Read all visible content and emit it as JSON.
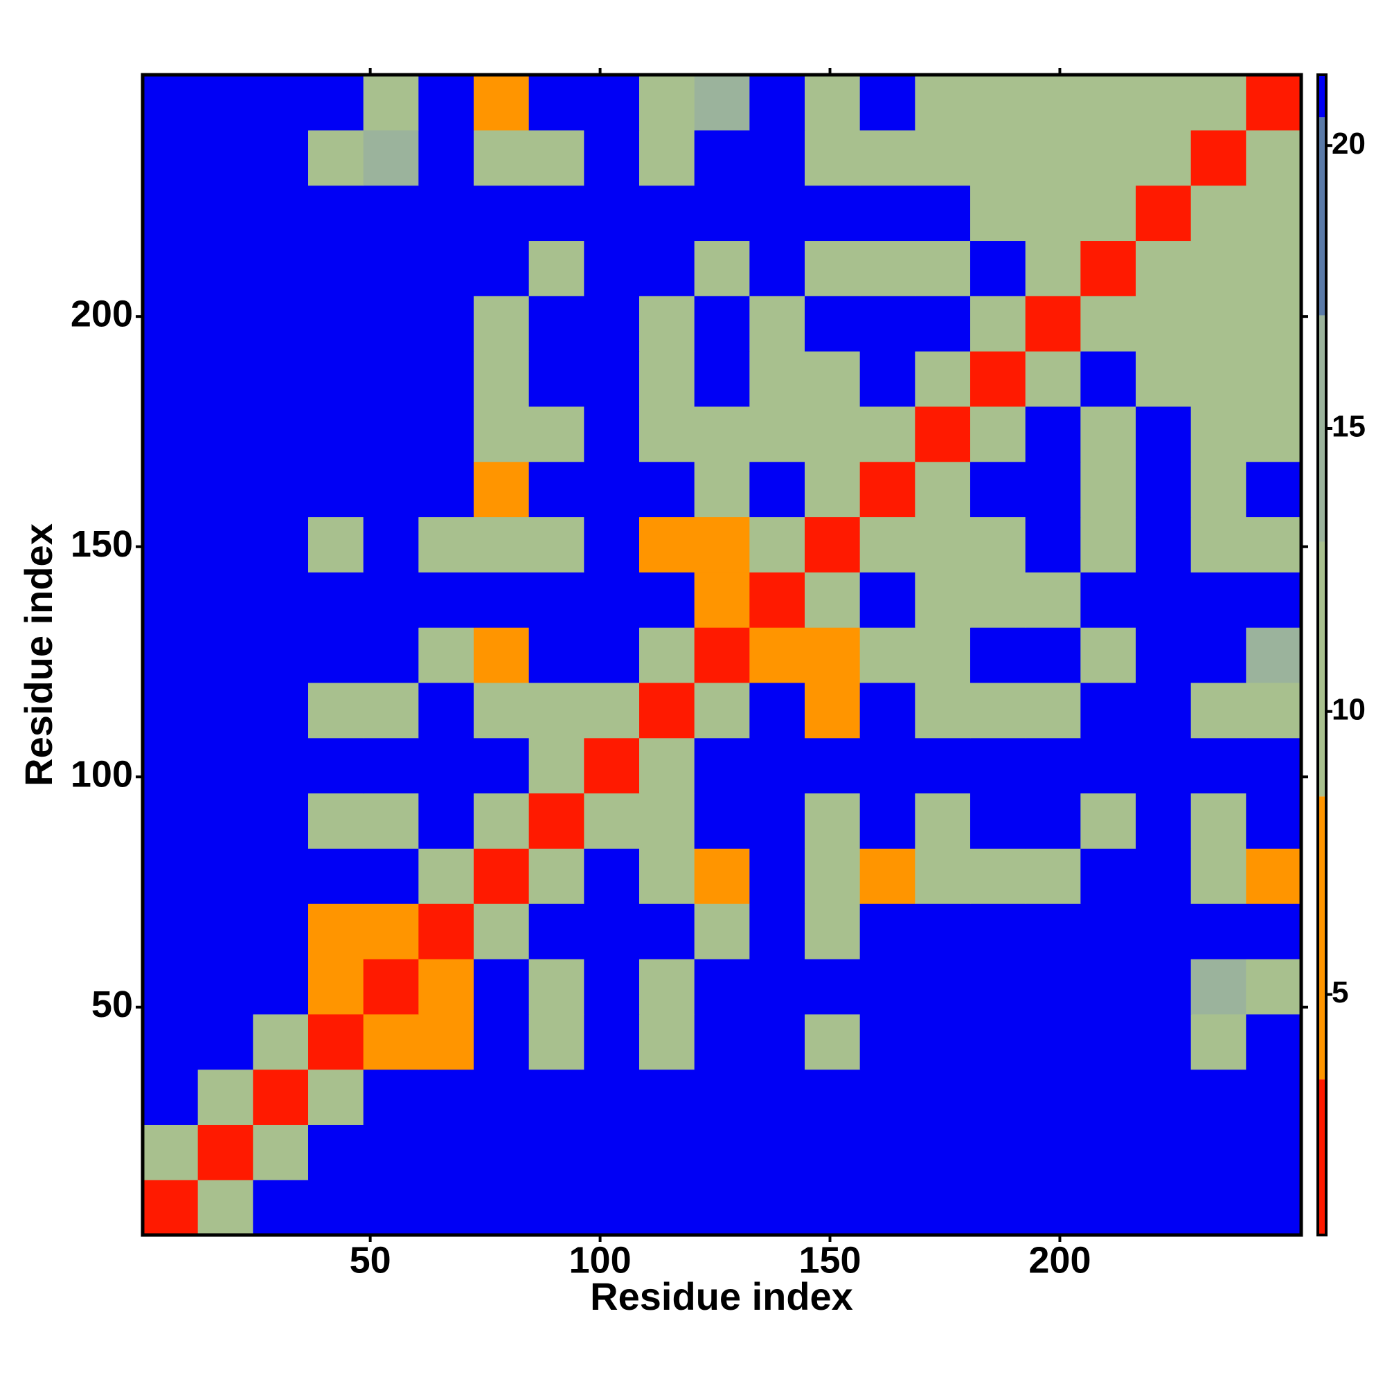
{
  "chart_data": {
    "type": "heatmap",
    "xlabel": "Residue index",
    "ylabel": "Residue index",
    "x_bins": [
      0.5,
      12.5,
      24.5,
      36.5,
      48.5,
      60.5,
      72.5,
      84.5,
      96.5,
      108.5,
      120.5,
      132.5,
      144.5,
      156.5,
      168.5,
      180.5,
      192.5,
      204.5,
      216.5,
      228.5,
      240.5,
      252.5
    ],
    "y_bins": [
      0.5,
      12.5,
      24.5,
      36.5,
      48.5,
      60.5,
      72.5,
      84.5,
      96.5,
      108.5,
      120.5,
      132.5,
      144.5,
      156.5,
      168.5,
      180.5,
      192.5,
      204.5,
      216.5,
      228.5,
      240.5,
      252.5
    ],
    "xlim": [
      0.5,
      252.5
    ],
    "ylim": [
      0.5,
      252.5
    ],
    "xticks": [
      50,
      100,
      150,
      200
    ],
    "yticks": [
      50,
      100,
      150,
      200
    ],
    "z": [
      [
        3,
        10,
        21,
        21,
        21,
        21,
        21,
        21,
        21,
        21,
        21,
        21,
        21,
        21,
        21,
        21,
        21,
        21,
        21,
        21,
        21
      ],
      [
        10,
        3,
        10,
        21,
        21,
        21,
        21,
        21,
        21,
        21,
        21,
        21,
        21,
        21,
        21,
        21,
        21,
        21,
        21,
        21,
        21
      ],
      [
        21,
        10,
        3,
        10,
        21,
        21,
        21,
        21,
        21,
        21,
        21,
        21,
        21,
        21,
        21,
        21,
        21,
        21,
        21,
        21,
        21
      ],
      [
        21,
        21,
        10,
        3,
        7,
        7,
        21,
        12,
        21,
        10,
        21,
        21,
        11,
        21,
        21,
        21,
        21,
        21,
        21,
        12,
        21
      ],
      [
        21,
        21,
        21,
        7,
        3,
        7,
        21,
        11,
        21,
        13,
        21,
        21,
        21,
        21,
        21,
        21,
        21,
        21,
        21,
        14,
        13
      ],
      [
        21,
        21,
        21,
        7,
        7,
        3,
        10,
        21,
        21,
        21,
        13,
        21,
        13,
        21,
        21,
        21,
        21,
        21,
        21,
        21,
        21
      ],
      [
        21,
        21,
        21,
        21,
        21,
        10,
        3,
        10,
        21,
        11,
        8,
        21,
        11,
        7,
        12,
        12,
        12,
        21,
        21,
        11,
        8
      ],
      [
        21,
        21,
        21,
        12,
        11,
        21,
        10,
        3,
        10,
        10,
        21,
        21,
        11,
        21,
        12,
        21,
        21,
        12,
        21,
        12,
        21
      ],
      [
        21,
        21,
        21,
        21,
        21,
        21,
        21,
        10,
        3,
        10,
        21,
        21,
        21,
        21,
        21,
        21,
        21,
        21,
        21,
        21,
        21
      ],
      [
        21,
        21,
        21,
        10,
        13,
        21,
        11,
        10,
        10,
        3,
        10,
        21,
        8,
        21,
        10,
        9,
        12,
        21,
        21,
        12,
        12
      ],
      [
        21,
        21,
        21,
        21,
        21,
        13,
        8,
        21,
        21,
        10,
        3,
        7,
        7,
        10,
        9,
        21,
        21,
        13,
        21,
        21,
        14
      ],
      [
        21,
        21,
        21,
        21,
        21,
        21,
        21,
        21,
        21,
        21,
        7,
        3,
        10,
        21,
        10,
        10,
        11,
        21,
        21,
        21,
        21
      ],
      [
        21,
        21,
        21,
        11,
        21,
        13,
        11,
        11,
        21,
        8,
        7,
        10,
        3,
        10,
        10,
        10,
        21,
        11,
        21,
        12,
        12
      ],
      [
        21,
        21,
        21,
        21,
        21,
        21,
        7,
        21,
        21,
        21,
        10,
        21,
        10,
        3,
        10,
        21,
        21,
        12,
        21,
        12,
        21
      ],
      [
        21,
        21,
        21,
        21,
        21,
        21,
        12,
        12,
        21,
        10,
        9,
        10,
        10,
        10,
        3,
        10,
        21,
        10,
        21,
        10,
        12
      ],
      [
        21,
        21,
        21,
        21,
        21,
        21,
        12,
        21,
        21,
        9,
        21,
        10,
        10,
        21,
        10,
        3,
        10,
        21,
        11,
        12,
        12
      ],
      [
        21,
        21,
        21,
        21,
        21,
        21,
        12,
        21,
        21,
        12,
        21,
        11,
        21,
        21,
        21,
        10,
        3,
        10,
        12,
        13,
        12
      ],
      [
        21,
        21,
        21,
        21,
        21,
        21,
        21,
        12,
        21,
        21,
        13,
        21,
        11,
        12,
        10,
        21,
        10,
        3,
        10,
        12,
        12
      ],
      [
        21,
        21,
        21,
        21,
        21,
        21,
        21,
        21,
        21,
        21,
        21,
        21,
        21,
        21,
        21,
        11,
        12,
        10,
        3,
        10,
        9
      ],
      [
        21,
        21,
        21,
        12,
        14,
        21,
        11,
        12,
        21,
        12,
        21,
        21,
        12,
        12,
        10,
        12,
        13,
        12,
        10,
        3,
        10
      ],
      [
        21,
        21,
        21,
        21,
        13,
        21,
        8,
        21,
        21,
        12,
        14,
        21,
        12,
        21,
        12,
        12,
        12,
        12,
        9,
        10,
        3
      ]
    ],
    "zlim": [
      0.75,
      21.25
    ],
    "zticks": [
      5,
      10,
      15,
      20
    ],
    "color_levels": [
      {
        "max": 3.5,
        "color": "#ff1a00"
      },
      {
        "max": 8.5,
        "color": "#ff9500"
      },
      {
        "max": 13,
        "color": "#a8c08e"
      },
      {
        "max": 17,
        "color": "#9bb39c"
      },
      {
        "max": 20.5,
        "color": "#5a7aa8"
      },
      {
        "max": 21.25,
        "color": "#0000f5"
      }
    ]
  }
}
